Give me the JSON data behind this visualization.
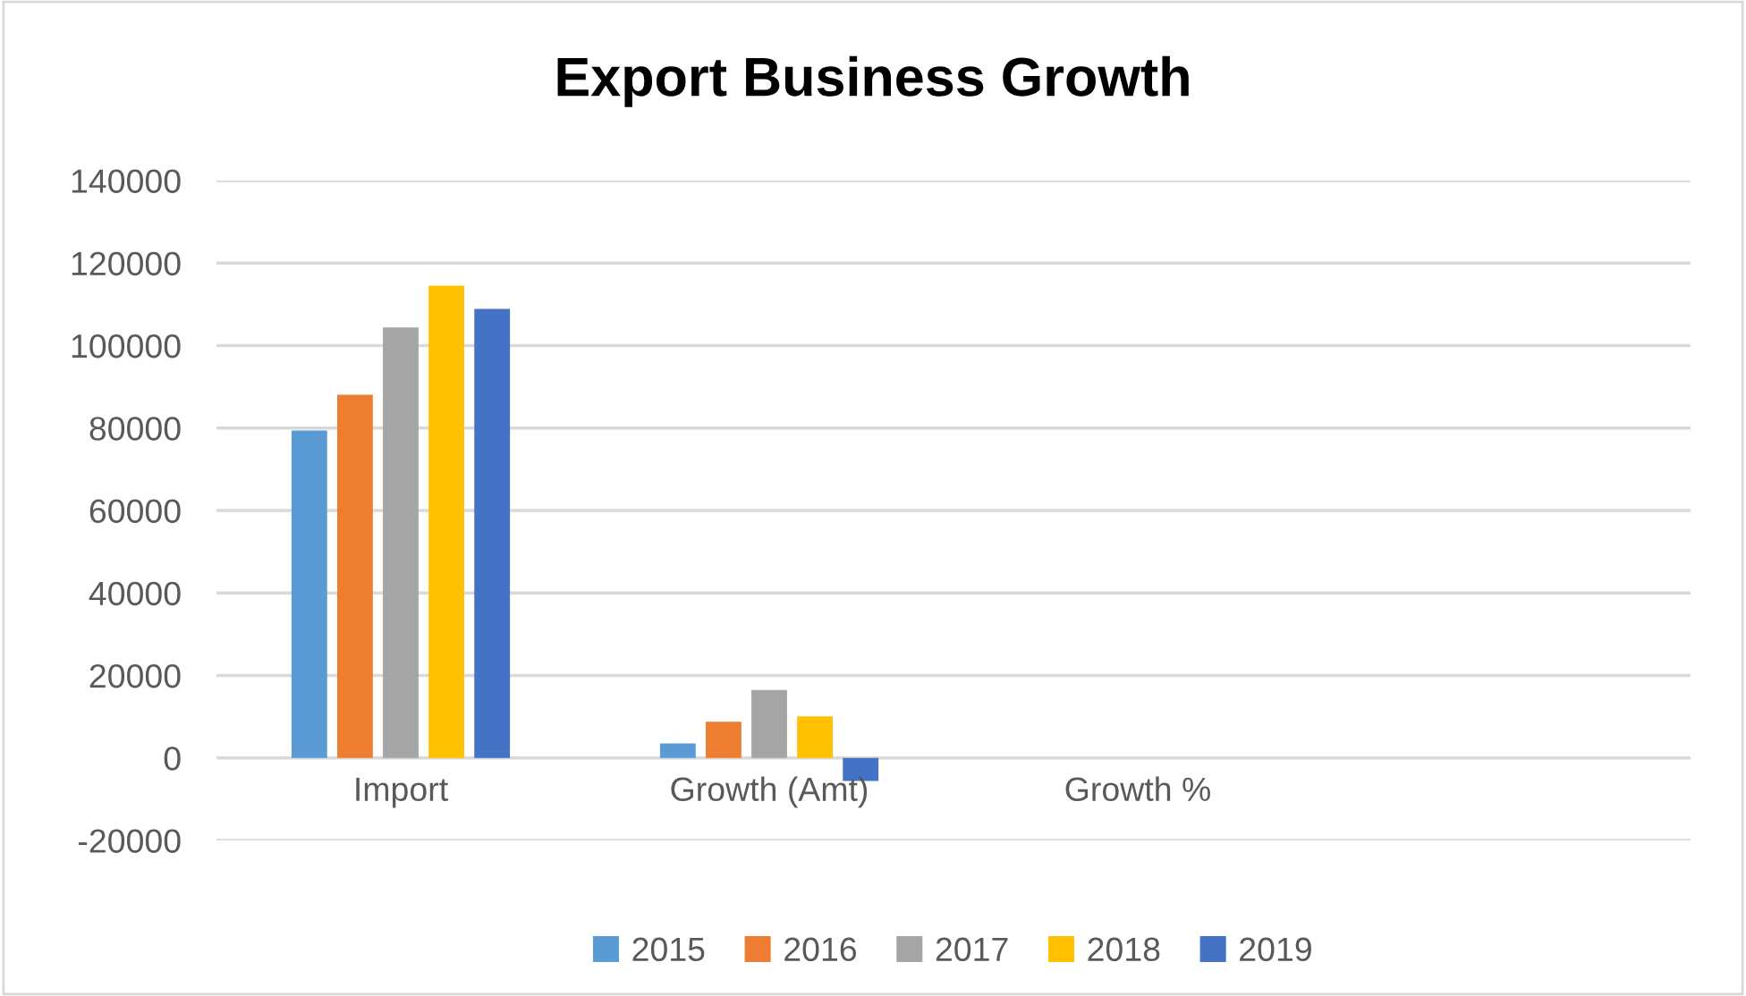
{
  "chart_data": {
    "type": "bar",
    "title": "Export Business Growth",
    "categories": [
      "Import",
      "Growth (Amt)",
      "Growth %",
      null
    ],
    "series": [
      {
        "name": "2015",
        "color": "#5b9bd5",
        "values": [
          79400,
          3500,
          0,
          null
        ]
      },
      {
        "name": "2016",
        "color": "#ed7d31",
        "values": [
          88100,
          8800,
          0,
          null
        ]
      },
      {
        "name": "2017",
        "color": "#a5a5a5",
        "values": [
          104400,
          16500,
          0,
          null
        ]
      },
      {
        "name": "2018",
        "color": "#ffc000",
        "values": [
          114500,
          10100,
          0,
          null
        ]
      },
      {
        "name": "2019",
        "color": "#4472c4",
        "values": [
          108900,
          -5600,
          0,
          null
        ]
      }
    ],
    "ylim": [
      -20000,
      140000
    ],
    "yticks": [
      -20000,
      0,
      20000,
      40000,
      60000,
      80000,
      100000,
      120000,
      140000
    ],
    "grid": "y",
    "legend": "bottom"
  }
}
